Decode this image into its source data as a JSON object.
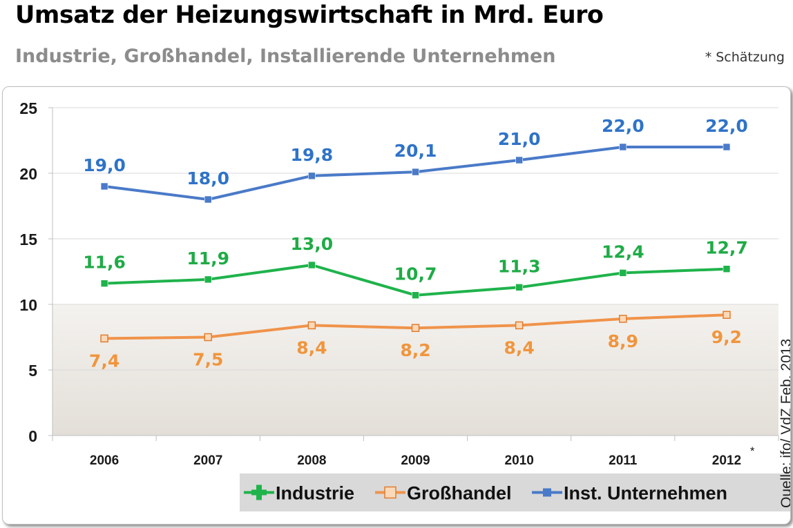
{
  "header": {
    "title": "Umsatz der Heizungswirtschaft in Mrd. Euro",
    "subtitle": "Industrie, Großhandel, Installierende Unternehmen",
    "note": "* Schätzung"
  },
  "source": "Quelle: ifo/ VdZ Feb. 2013",
  "chart_data": {
    "type": "line",
    "categories": [
      "2006",
      "2007",
      "2008",
      "2009",
      "2010",
      "2011",
      "2012"
    ],
    "category_markers": [
      "",
      "",
      "",
      "",
      "",
      "",
      "*"
    ],
    "ylim": [
      0,
      25
    ],
    "yticks": [
      0,
      5,
      10,
      15,
      20,
      25
    ],
    "grid": true,
    "legend_position": "bottom-right",
    "series": [
      {
        "name": "Industrie",
        "color": "#1fb34b",
        "label_color": "#1fab46",
        "marker": "square-filled",
        "values": [
          11.6,
          11.9,
          13.0,
          10.7,
          11.3,
          12.4,
          12.7
        ],
        "labels": [
          "11,6",
          "11,9",
          "13,0",
          "10,7",
          "11,3",
          "12,4",
          "12,7"
        ],
        "label_position": "above"
      },
      {
        "name": "Großhandel",
        "color": "#f0934a",
        "label_color": "#f0953d",
        "marker": "square-hollow",
        "values": [
          7.4,
          7.5,
          8.4,
          8.2,
          8.4,
          8.9,
          9.2
        ],
        "labels": [
          "7,4",
          "7,5",
          "8,4",
          "8,2",
          "8,4",
          "8,9",
          "9,2"
        ],
        "label_position": "below"
      },
      {
        "name": "Inst. Unternehmen",
        "color": "#4a7ac8",
        "label_color": "#2f73c8",
        "marker": "square-filled",
        "values": [
          19.0,
          18.0,
          19.8,
          20.1,
          21.0,
          22.0,
          22.0
        ],
        "labels": [
          "19,0",
          "18,0",
          "19,8",
          "20,1",
          "21,0",
          "22,0",
          "22,0"
        ],
        "label_position": "above"
      }
    ]
  }
}
